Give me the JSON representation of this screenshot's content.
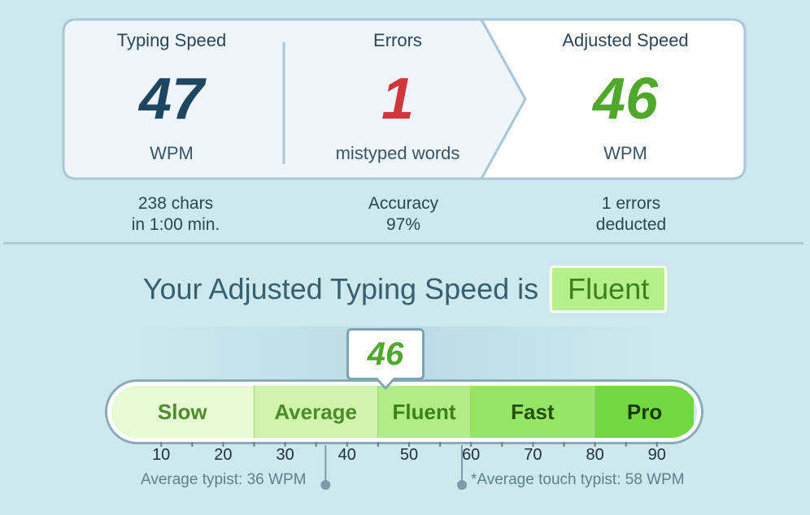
{
  "stats": {
    "typing_speed": {
      "label": "Typing Speed",
      "value": "47",
      "unit": "WPM",
      "color": "#1f4660"
    },
    "errors": {
      "label": "Errors",
      "value": "1",
      "unit": "mistyped words",
      "color": "#d0363c"
    },
    "adjusted_speed": {
      "label": "Adjusted Speed",
      "value": "46",
      "unit": "WPM",
      "color": "#4fa82c"
    }
  },
  "sub_stats": {
    "chars": {
      "line1": "238 chars",
      "line2": "in 1:00 min."
    },
    "accuracy": {
      "line1": "Accuracy",
      "line2": "97%"
    },
    "deducted": {
      "line1": "1 errors",
      "line2": "deducted"
    }
  },
  "result": {
    "prefix": "Your Adjusted Typing Speed is",
    "level": "Fluent"
  },
  "meter": {
    "current_wpm": 46,
    "current_label": "46",
    "min_wpm": 0,
    "max_wpm": 96,
    "segments": [
      {
        "label": "Slow",
        "from": 0,
        "to": 25,
        "bg": "#e6fbd4",
        "color": "#4f8a2c"
      },
      {
        "label": "Average",
        "from": 25,
        "to": 45,
        "bg": "#cef5ab",
        "color": "#4f8a2c"
      },
      {
        "label": "Fluent",
        "from": 45,
        "to": 60,
        "bg": "#b2ec86",
        "color": "#3f7f1d"
      },
      {
        "label": "Fast",
        "from": 60,
        "to": 80,
        "bg": "#96e666",
        "color": "#255012"
      },
      {
        "label": "Pro",
        "from": 80,
        "to": 96,
        "bg": "#72d83f",
        "color": "#1a3a0a"
      }
    ],
    "tick_labels": [
      "10",
      "20",
      "30",
      "40",
      "50",
      "60",
      "70",
      "80",
      "90"
    ],
    "notes": {
      "average": {
        "text": "Average typist: 36 WPM",
        "wpm": 36
      },
      "touch": {
        "text": "*Average touch typist: 58 WPM",
        "wpm": 58
      }
    }
  }
}
